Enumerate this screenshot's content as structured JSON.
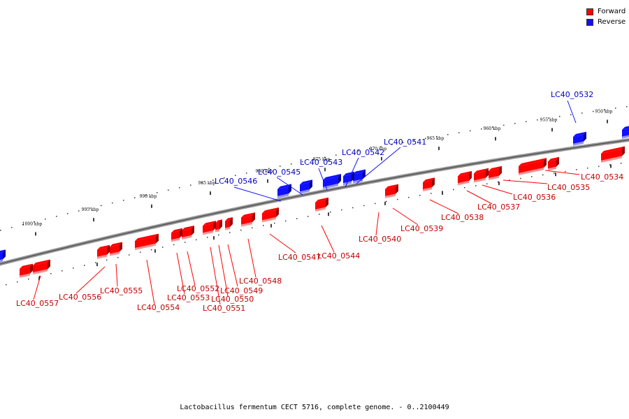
{
  "legend": {
    "forward_label": "Forward",
    "reverse_label": "Reverse",
    "forward_color": "#ff0000",
    "reverse_color": "#1010ff"
  },
  "caption": "Lactobacillus fermentum CECT 5716, complete genome. - 0..2100449",
  "ticks": [
    "950 kbp",
    "955 kbp",
    "960 kbp",
    "965 kbp",
    "970 kbp",
    "975 kbp",
    "980 kbp",
    "985 kbp",
    "990 kbp",
    "995 kbp",
    "1000 kbp"
  ],
  "genes": [
    {
      "name": "LC40_0532",
      "strand": "reverse"
    },
    {
      "name": "LC40_0534",
      "strand": "forward"
    },
    {
      "name": "LC40_0535",
      "strand": "forward"
    },
    {
      "name": "LC40_0536",
      "strand": "forward"
    },
    {
      "name": "LC40_0537",
      "strand": "forward"
    },
    {
      "name": "LC40_0538",
      "strand": "forward"
    },
    {
      "name": "LC40_0539",
      "strand": "forward"
    },
    {
      "name": "LC40_0540",
      "strand": "forward"
    },
    {
      "name": "LC40_0541",
      "strand": "reverse"
    },
    {
      "name": "LC40_0542",
      "strand": "reverse"
    },
    {
      "name": "LC40_0543",
      "strand": "reverse"
    },
    {
      "name": "LC40_0544",
      "strand": "forward"
    },
    {
      "name": "LC40_0545",
      "strand": "reverse"
    },
    {
      "name": "LC40_0546",
      "strand": "reverse"
    },
    {
      "name": "LC40_0547",
      "strand": "forward"
    },
    {
      "name": "LC40_0548",
      "strand": "forward"
    },
    {
      "name": "LC40_0549",
      "strand": "forward"
    },
    {
      "name": "LC40_0550",
      "strand": "forward"
    },
    {
      "name": "LC40_0551",
      "strand": "forward"
    },
    {
      "name": "LC40_0552",
      "strand": "forward"
    },
    {
      "name": "LC40_0553",
      "strand": "forward"
    },
    {
      "name": "LC40_0554",
      "strand": "forward"
    },
    {
      "name": "LC40_0555",
      "strand": "forward"
    },
    {
      "name": "LC40_0556",
      "strand": "forward"
    },
    {
      "name": "LC40_0557",
      "strand": "forward"
    }
  ]
}
